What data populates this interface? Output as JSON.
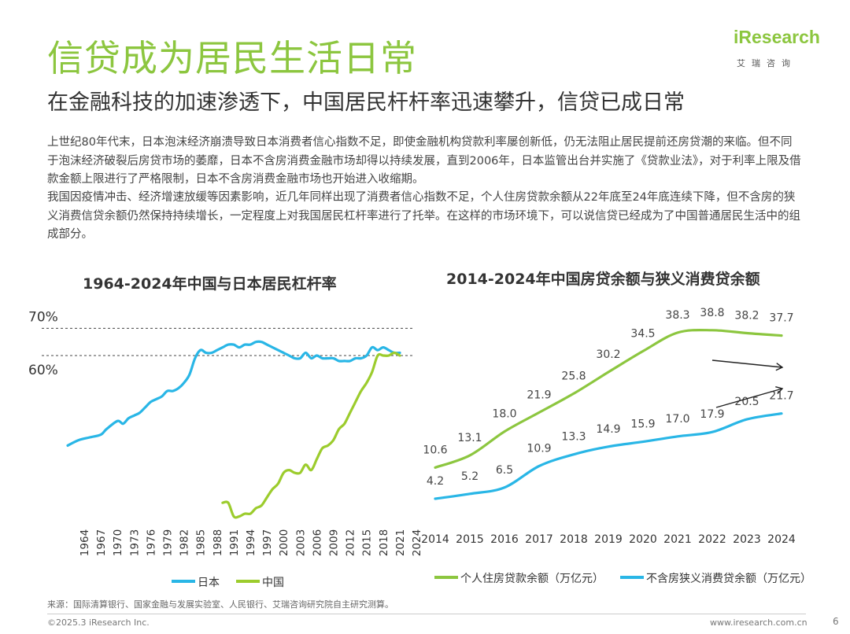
{
  "header": {
    "title": "信贷成为居民生活日常",
    "subtitle": "在金融科技的加速渗透下，中国居民杆杆率迅速攀升，信贷已成日常"
  },
  "logo": {
    "main": "iResearch",
    "sub": "艾瑞咨询"
  },
  "body": {
    "paragraph1": "上世纪80年代末，日本泡沫经济崩溃导致日本消费者信心指数不足，即使金融机构贷款利率屡创新低，仍无法阻止居民提前还房贷潮的来临。但不同于泡沫经济破裂后房贷市场的萎靡，日本不含房消费金融市场却得以持续发展，直到2006年，日本监管出台并实施了《贷款业法》，对于利率上限及借款金额上限进行了严格限制，日本不含房消费金融市场也开始进入收缩期。",
    "paragraph2": "我国因疫情冲击、经济增速放缓等因素影响，近几年同样出现了消费者信心指数不足，个人住房贷款余额从22年底至24年底连续下降，但不含房的狭义消费信贷余额仍然保持持续增长，一定程度上对我国居民杠杆率进行了托举。在这样的市场环境下，可以说信贷已经成为了中国普通居民生活中的组成部分。"
  },
  "chart_data": [
    {
      "type": "line",
      "title": "1964-2024年中国与日本居民杠杆率",
      "x_tick_labels": [
        "1964",
        "1967",
        "1970",
        "1973",
        "1976",
        "1979",
        "1982",
        "1985",
        "1988",
        "1991",
        "1994",
        "1997",
        "2000",
        "2003",
        "2006",
        "2009",
        "2012",
        "2015",
        "2018",
        "2021",
        "2024"
      ],
      "reference_lines": [
        {
          "label": "70%",
          "value": 70
        },
        {
          "label": "60%",
          "value": 60
        }
      ],
      "ylim": [
        0,
        75
      ],
      "series": [
        {
          "name": "日本",
          "color": "#29b6e6",
          "x": [
            1964,
            1966,
            1968,
            1970,
            1971,
            1973,
            1974,
            1975,
            1976,
            1977,
            1978,
            1979,
            1980,
            1981,
            1982,
            1983,
            1984,
            1985,
            1986,
            1987,
            1988,
            1989,
            1990,
            1991,
            1992,
            1993,
            1994,
            1995,
            1996,
            1997,
            1998,
            1999,
            2000,
            2001,
            2002,
            2003,
            2004,
            2005,
            2006,
            2007,
            2008,
            2009,
            2010,
            2011,
            2012,
            2013,
            2014,
            2015,
            2016,
            2017,
            2018,
            2019,
            2020,
            2021,
            2022,
            2023,
            2024
          ],
          "values": [
            27,
            29,
            30,
            31,
            33,
            36,
            35,
            37,
            38,
            39,
            41,
            43,
            44,
            45,
            47,
            47,
            48,
            50,
            53,
            59,
            62,
            61,
            61,
            62,
            63,
            64,
            64,
            63,
            64,
            64,
            65,
            65,
            64,
            63,
            62,
            61,
            60,
            59,
            59,
            61,
            59,
            60,
            59,
            59,
            59,
            58,
            58,
            58,
            59,
            59,
            60,
            63,
            62,
            63,
            62,
            61,
            61
          ]
        },
        {
          "name": "中国",
          "color": "#9ccc2d",
          "x": [
            1992,
            1993,
            1994,
            1995,
            1996,
            1997,
            1998,
            1999,
            2000,
            2001,
            2002,
            2003,
            2004,
            2005,
            2006,
            2007,
            2008,
            2009,
            2010,
            2011,
            2012,
            2013,
            2014,
            2015,
            2016,
            2017,
            2018,
            2019,
            2020,
            2021,
            2022,
            2023,
            2024
          ],
          "values": [
            6,
            6,
            1,
            1,
            2,
            2,
            4,
            5,
            8,
            11,
            13,
            17,
            18,
            17,
            17,
            20,
            18,
            22,
            26,
            27,
            29,
            33,
            35,
            39,
            43,
            47,
            50,
            54,
            60,
            60,
            60,
            61,
            60
          ]
        }
      ]
    },
    {
      "type": "line",
      "title": "2014-2024年中国房贷余额与狭义消费贷余额",
      "categories": [
        "2014",
        "2015",
        "2016",
        "2017",
        "2018",
        "2019",
        "2020",
        "2021",
        "2022",
        "2023",
        "2024"
      ],
      "ylim": [
        0,
        42
      ],
      "series": [
        {
          "name": "个人住房贷款余额（万亿元）",
          "color": "#8cc63f",
          "values": [
            10.6,
            13.1,
            18.0,
            21.9,
            25.8,
            30.2,
            34.5,
            38.3,
            38.8,
            38.2,
            37.7
          ]
        },
        {
          "name": "不含房狭义消费贷余额（万亿元）",
          "color": "#29b6e6",
          "values": [
            4.2,
            5.2,
            6.5,
            10.9,
            13.3,
            14.9,
            15.9,
            17.0,
            17.9,
            20.5,
            21.7
          ]
        }
      ]
    }
  ],
  "footer": {
    "source": "来源：国际清算银行、国家金融与发展实验室、人民银行、艾瑞咨询研究院自主研究测算。",
    "copyright": "©2025.3 iResearch Inc.",
    "website": "www.iresearch.com.cn",
    "page": "6"
  }
}
